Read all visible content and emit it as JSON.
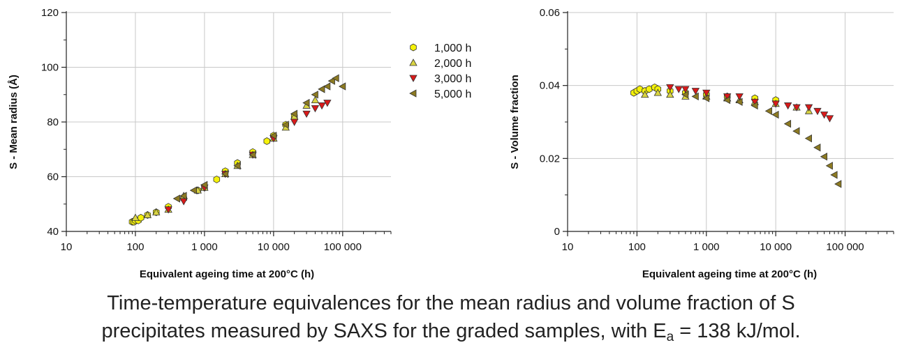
{
  "caption": {
    "line1": "Time-temperature equivalences for the mean radius and volume fraction of S",
    "line2_start": "precipitates measured by SAXS for the graded samples, with E",
    "line2_sub": "a",
    "line2_end": " = 138 kJ/mol."
  },
  "colors": {
    "1,000 h": "#f5f20a",
    "2,000 h": "#d9d442",
    "3,000 h": "#d91a1a",
    "5,000 h": "#8c7a22",
    "grid": "#c8c8c8"
  },
  "legend": [
    "1,000 h",
    "2,000 h",
    "3,000 h",
    "5,000 h"
  ],
  "chart_data": [
    {
      "type": "scatter",
      "xscale": "log",
      "xlabel": "Equivalent ageing time at 200°C (h)",
      "ylabel": "S - Mean radius (Å)",
      "xlim": [
        10,
        500000
      ],
      "ylim": [
        40,
        120
      ],
      "yticks": [
        40,
        60,
        80,
        100,
        120
      ],
      "ytick_labels": [
        "40",
        "60",
        "80",
        "100",
        "120"
      ],
      "xticks": [
        10,
        100,
        1000,
        10000,
        100000
      ],
      "xtick_labels": [
        "10",
        "100",
        "1 000",
        "10 000",
        "100 000"
      ],
      "grid": true,
      "series": [
        {
          "name": "1,000 h",
          "marker": "hexagon",
          "x": [
            90,
            95,
            100,
            110,
            120,
            150,
            200,
            300,
            500,
            800,
            1000,
            1500,
            2000,
            3000,
            5000,
            8000,
            10000,
            15000,
            20000
          ],
          "y": [
            43.5,
            43.5,
            44,
            44,
            45,
            46,
            47,
            49,
            52,
            55,
            56,
            59,
            62,
            65,
            69,
            73,
            75,
            79,
            82
          ]
        },
        {
          "name": "2,000 h",
          "marker": "triangle-up",
          "x": [
            100,
            150,
            200,
            300,
            500,
            800,
            1000,
            2000,
            3000,
            5000,
            10000,
            15000,
            20000,
            30000,
            40000
          ],
          "y": [
            45,
            46,
            47,
            48,
            53,
            55,
            56,
            61,
            64,
            68,
            74,
            78,
            82,
            86,
            88
          ]
        },
        {
          "name": "3,000 h",
          "marker": "triangle-down",
          "x": [
            300,
            500,
            1000,
            2000,
            5000,
            10000,
            20000,
            30000,
            40000,
            50000,
            60000
          ],
          "y": [
            48,
            51,
            56,
            61,
            68,
            74,
            80,
            83,
            85,
            86,
            87
          ]
        },
        {
          "name": "5,000 h",
          "marker": "triangle-left",
          "x": [
            400,
            500,
            700,
            1000,
            2000,
            3000,
            5000,
            10000,
            15000,
            20000,
            30000,
            40000,
            50000,
            60000,
            70000,
            80000,
            100000
          ],
          "y": [
            52,
            53,
            55,
            57,
            61,
            64,
            68,
            75,
            79,
            83,
            87,
            90,
            92,
            93,
            95,
            96,
            93
          ]
        }
      ]
    },
    {
      "type": "scatter",
      "xscale": "log",
      "xlabel": "Equivalent ageing time at 200°C (h)",
      "ylabel": "S - Volume fraction",
      "xlim": [
        10,
        500000
      ],
      "ylim": [
        0,
        0.06
      ],
      "yticks": [
        0,
        0.02,
        0.04,
        0.06
      ],
      "ytick_labels": [
        "0",
        "0.02",
        "0.04",
        "0.06"
      ],
      "xticks": [
        10,
        100,
        1000,
        10000,
        100000
      ],
      "xtick_labels": [
        "10",
        "100",
        "1 000",
        "10 000",
        "100 000"
      ],
      "grid": true,
      "series": [
        {
          "name": "1,000 h",
          "marker": "hexagon",
          "x": [
            90,
            100,
            110,
            130,
            150,
            180,
            200,
            300,
            500,
            1000,
            2000,
            5000,
            10000
          ],
          "y": [
            0.038,
            0.0385,
            0.039,
            0.0385,
            0.039,
            0.0395,
            0.039,
            0.0385,
            0.038,
            0.0375,
            0.037,
            0.0365,
            0.036
          ]
        },
        {
          "name": "2,000 h",
          "marker": "triangle-up",
          "x": [
            130,
            200,
            300,
            500,
            1000,
            2000,
            3000,
            5000,
            10000,
            20000,
            30000
          ],
          "y": [
            0.0375,
            0.038,
            0.0375,
            0.037,
            0.037,
            0.0365,
            0.036,
            0.0355,
            0.035,
            0.034,
            0.033
          ]
        },
        {
          "name": "3,000 h",
          "marker": "triangle-down",
          "x": [
            300,
            400,
            500,
            700,
            1000,
            2000,
            3000,
            5000,
            10000,
            15000,
            20000,
            30000,
            40000,
            50000,
            60000
          ],
          "y": [
            0.0395,
            0.039,
            0.039,
            0.0385,
            0.038,
            0.037,
            0.037,
            0.0355,
            0.035,
            0.0345,
            0.034,
            0.034,
            0.033,
            0.032,
            0.031
          ]
        },
        {
          "name": "5,000 h",
          "marker": "triangle-left",
          "x": [
            500,
            700,
            1000,
            2000,
            3000,
            5000,
            8000,
            10000,
            15000,
            20000,
            30000,
            40000,
            50000,
            60000,
            70000,
            80000
          ],
          "y": [
            0.0375,
            0.037,
            0.0365,
            0.036,
            0.0355,
            0.0345,
            0.033,
            0.032,
            0.0295,
            0.0275,
            0.0255,
            0.023,
            0.0205,
            0.018,
            0.0155,
            0.013
          ]
        }
      ]
    }
  ]
}
